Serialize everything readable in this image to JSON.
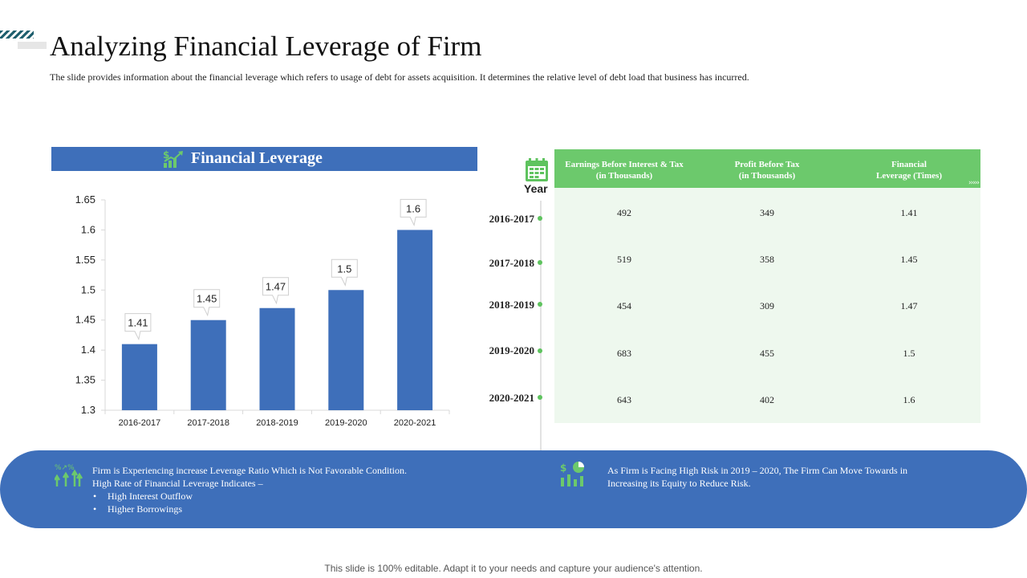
{
  "header": {
    "title": "Analyzing Financial Leverage of Firm",
    "subtitle": "The slide provides information about the financial leverage which refers to usage of debt for assets acquisition. It determines the relative level of debt load that business has incurred."
  },
  "chart_panel": {
    "title": "Financial Leverage",
    "icon": "dollar-growth-icon"
  },
  "chart_data": {
    "type": "bar",
    "categories": [
      "2016-2017",
      "2017-2018",
      "2018-2019",
      "2019-2020",
      "2020-2021"
    ],
    "values": [
      1.41,
      1.45,
      1.47,
      1.5,
      1.6
    ],
    "data_labels": [
      "1.41",
      "1.45",
      "1.47",
      "1.5",
      "1.6"
    ],
    "y_ticks": [
      "1.65",
      "1.6",
      "1.55",
      "1.5",
      "1.45",
      "1.4",
      "1.35",
      "1.3"
    ],
    "ylim": [
      1.3,
      1.65
    ],
    "bar_color": "#3e6fba",
    "grid": false,
    "title": "Financial Leverage",
    "xlabel": "",
    "ylabel": ""
  },
  "table": {
    "year_label": "Year",
    "icon": "calendar-icon",
    "header_color": "#6cc96c",
    "body_color": "#eef8ee",
    "columns": [
      [
        "Earnings Before Interest & Tax",
        "(in Thousands)"
      ],
      [
        "Profit Before Tax",
        "(in Thousands)"
      ],
      [
        "Financial",
        "Leverage (Times)"
      ]
    ],
    "rows": [
      {
        "year": "2016-2017",
        "values": [
          "492",
          "349",
          "1.41"
        ]
      },
      {
        "year": "2017-2018",
        "values": [
          "519",
          "358",
          "1.45"
        ]
      },
      {
        "year": "2018-2019",
        "values": [
          "454",
          "309",
          "1.47"
        ]
      },
      {
        "year": "2019-2020",
        "values": [
          "683",
          "455",
          "1.5"
        ]
      },
      {
        "year": "2020-2021",
        "values": [
          "643",
          "402",
          "1.6"
        ]
      }
    ]
  },
  "banner": {
    "left": {
      "icon": "leverage-arrows-icon",
      "line1": "Firm is Experiencing  increase Leverage Ratio Which is Not Favorable Condition.",
      "line2": "High Rate  of Financial Leverage Indicates –",
      "bullets": [
        "High Interest  Outflow",
        "Higher Borrowings"
      ]
    },
    "right": {
      "icon": "risk-chart-icon",
      "line1": "As Firm is Facing High Risk in 2019 – 2020, The Firm Can Move Towards in",
      "line2": "Increasing  its Equity to Reduce Risk."
    },
    "color": "#3e6fba"
  },
  "footer": "This slide is 100% editable. Adapt it to your needs and capture your audience's attention."
}
